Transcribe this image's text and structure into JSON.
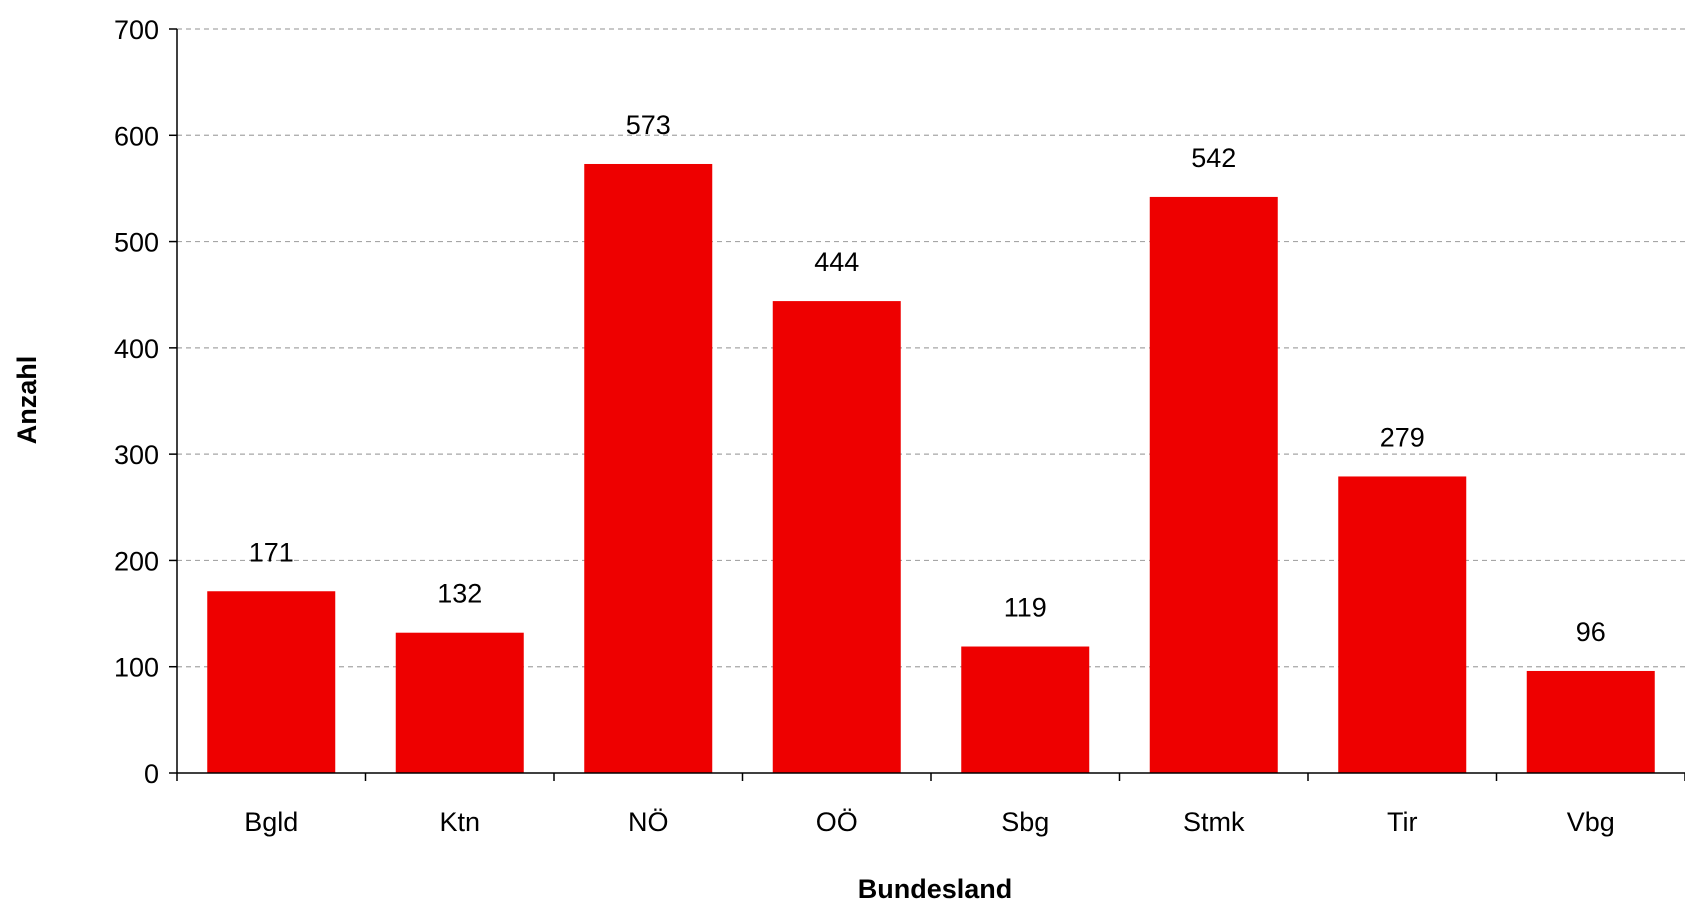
{
  "chart_data": {
    "type": "bar",
    "categories": [
      "Bgld",
      "Ktn",
      "NÖ",
      "OÖ",
      "Sbg",
      "Stmk",
      "Tir",
      "Vbg"
    ],
    "values": [
      171,
      132,
      573,
      444,
      119,
      542,
      279,
      96
    ],
    "data_labels": [
      "171",
      "132",
      "573",
      "444",
      "119",
      "542",
      "279",
      "96"
    ],
    "xlabel": "Bundesland",
    "ylabel": "Anzahl",
    "ylim": [
      0,
      700
    ],
    "yticks": [
      0,
      100,
      200,
      300,
      400,
      500,
      600,
      700
    ],
    "ytick_labels": [
      "0",
      "100",
      "200",
      "300",
      "400",
      "500",
      "600",
      "700"
    ],
    "grid": true,
    "legend": "none",
    "colors": {
      "bar": "#ee0000",
      "grid": "#a6a6a6",
      "axis": "#000000"
    }
  }
}
